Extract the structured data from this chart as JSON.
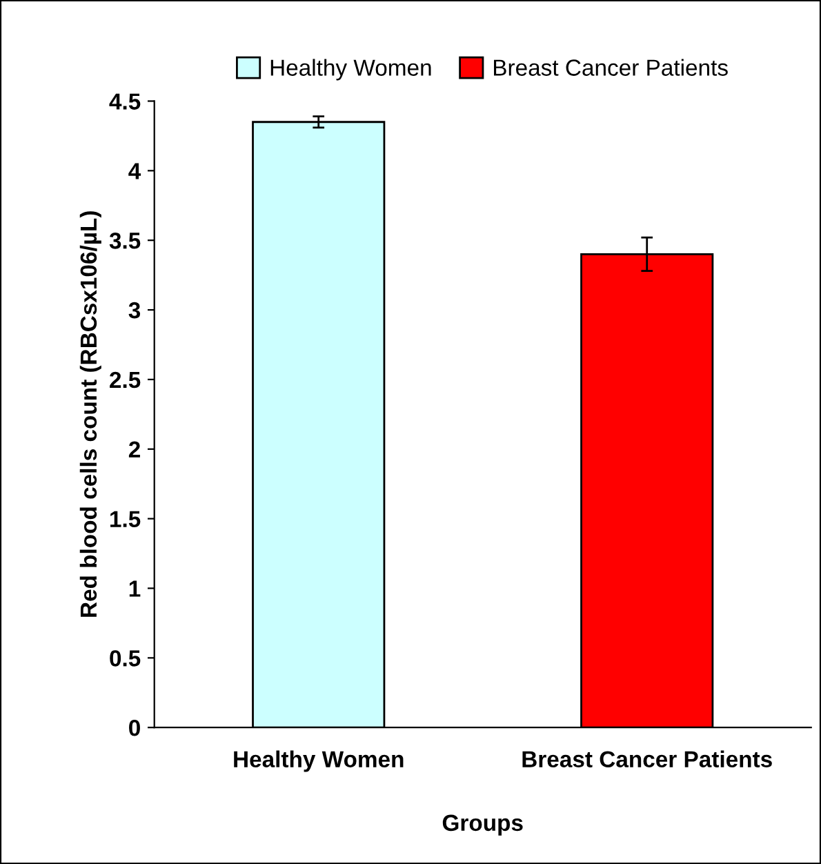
{
  "chart_data": {
    "type": "bar",
    "categories": [
      "Healthy Women",
      "Breast Cancer Patients"
    ],
    "xlabel": "Groups",
    "ylabel": "Red blood cells count (RBCsx106/µL)",
    "series": [
      {
        "name": "Healthy Women",
        "color": "#ccffff",
        "values": [
          4.35,
          null
        ],
        "errors": [
          0.04,
          null
        ]
      },
      {
        "name": "Breast Cancer Patients",
        "color": "#ff0000",
        "values": [
          null,
          3.4
        ],
        "errors": [
          null,
          0.12
        ]
      }
    ],
    "ylim": [
      0,
      4.5
    ],
    "yticks": [
      0,
      0.5,
      1,
      1.5,
      2,
      2.5,
      3,
      3.5,
      4,
      4.5
    ],
    "grid": false,
    "legend": "top"
  }
}
